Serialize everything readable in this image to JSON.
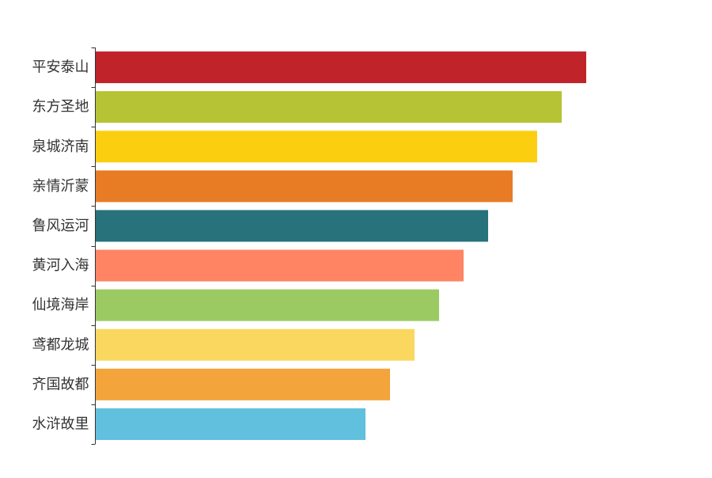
{
  "chart_data": {
    "type": "bar",
    "orientation": "horizontal",
    "categories": [
      "平安泰山",
      "东方圣地",
      "泉城济南",
      "亲情沂蒙",
      "鲁风运河",
      "黄河入海",
      "仙境海岸",
      "鸢都龙城",
      "齐国故都",
      "水浒故里"
    ],
    "values": [
      100,
      95,
      90,
      85,
      80,
      75,
      70,
      65,
      60,
      55
    ],
    "colors": [
      "#c1232b",
      "#b5c334",
      "#fcce10",
      "#e87c25",
      "#27727b",
      "#fe8463",
      "#9bca63",
      "#fad860",
      "#f3a43b",
      "#60c0dd"
    ],
    "xlim": [
      0,
      100
    ],
    "grid": false,
    "legend": false
  }
}
